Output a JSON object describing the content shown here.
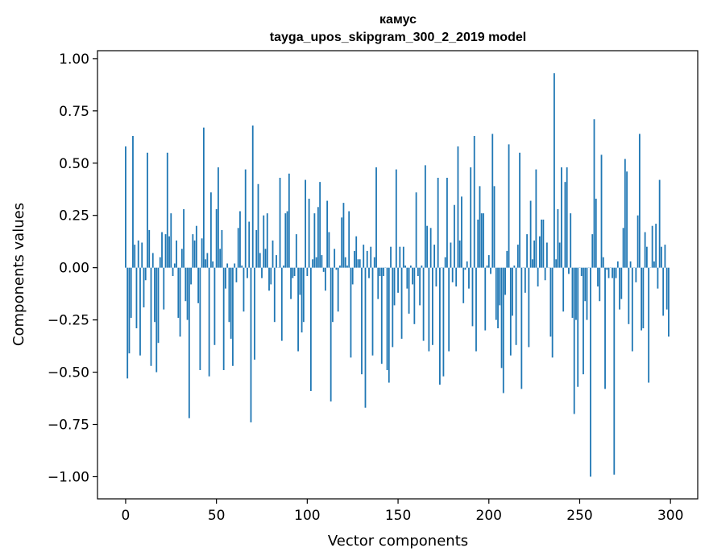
{
  "chart_data": {
    "type": "bar",
    "title": "камус",
    "subtitle": "tayga_upos_skipgram_300_2_2019 model",
    "xlabel": "Vector components",
    "ylabel": "Components values",
    "xlim": [
      -15.5,
      315
    ],
    "ylim": [
      -1.106,
      1.038
    ],
    "xticks": [
      0,
      50,
      100,
      150,
      200,
      250,
      300
    ],
    "xtick_labels": [
      "0",
      "50",
      "100",
      "150",
      "200",
      "250",
      "300"
    ],
    "yticks": [
      1.0,
      0.75,
      0.5,
      0.25,
      0.0,
      -0.25,
      -0.5,
      -0.75,
      -1.0
    ],
    "ytick_labels": [
      "1.00",
      "0.75",
      "0.50",
      "0.25",
      "0.00",
      "−0.25",
      "−0.50",
      "−0.75",
      "−1.00"
    ],
    "grid": false,
    "color": "#1f77b4",
    "values": [
      0.58,
      -0.53,
      -0.41,
      -0.24,
      0.63,
      0.11,
      -0.29,
      0.13,
      -0.42,
      0.12,
      -0.19,
      -0.06,
      0.55,
      0.18,
      -0.47,
      0.07,
      -0.26,
      -0.5,
      -0.36,
      0.05,
      0.17,
      -0.2,
      0.16,
      0.55,
      0.15,
      0.26,
      -0.04,
      0.02,
      0.13,
      -0.24,
      -0.33,
      0.09,
      0.28,
      -0.16,
      -0.25,
      -0.72,
      -0.08,
      0.16,
      0.13,
      0.2,
      -0.17,
      -0.49,
      0.14,
      0.67,
      0.04,
      0.07,
      -0.52,
      0.36,
      0.03,
      -0.37,
      0.28,
      0.48,
      0.09,
      0.18,
      -0.49,
      -0.1,
      0.02,
      -0.26,
      -0.34,
      -0.47,
      0.02,
      -0.07,
      0.19,
      0.27,
      0.01,
      -0.21,
      0.47,
      -0.05,
      0.22,
      -0.74,
      0.68,
      -0.44,
      0.18,
      0.4,
      0.07,
      -0.05,
      0.25,
      0.09,
      0.26,
      -0.11,
      -0.08,
      0.13,
      -0.26,
      0.06,
      0.0,
      0.43,
      -0.35,
      0.01,
      0.26,
      0.27,
      0.45,
      -0.15,
      -0.05,
      -0.04,
      0.16,
      -0.4,
      -0.13,
      -0.31,
      -0.26,
      0.42,
      -0.04,
      0.33,
      -0.59,
      0.04,
      0.26,
      0.05,
      0.29,
      0.41,
      0.06,
      -0.02,
      -0.11,
      0.32,
      0.17,
      -0.64,
      -0.26,
      0.09,
      -0.01,
      -0.21,
      0.01,
      0.24,
      0.31,
      0.05,
      0.01,
      0.27,
      -0.43,
      -0.08,
      0.08,
      0.15,
      0.04,
      0.04,
      -0.51,
      0.11,
      -0.67,
      0.08,
      -0.05,
      0.1,
      -0.42,
      0.05,
      0.48,
      -0.15,
      -0.04,
      -0.46,
      -0.04,
      0.0,
      -0.49,
      -0.55,
      0.1,
      -0.38,
      -0.18,
      0.47,
      -0.12,
      0.1,
      -0.34,
      0.1,
      0.01,
      -0.1,
      -0.22,
      0.01,
      -0.08,
      -0.27,
      0.36,
      -0.04,
      -0.18,
      0.01,
      -0.35,
      0.49,
      0.2,
      -0.4,
      0.19,
      -0.37,
      0.11,
      -0.09,
      0.43,
      -0.56,
      0.0,
      -0.52,
      0.05,
      0.43,
      -0.4,
      0.12,
      -0.07,
      0.3,
      -0.09,
      0.58,
      0.13,
      0.34,
      -0.17,
      -0.01,
      0.03,
      -0.1,
      0.48,
      -0.28,
      0.63,
      -0.4,
      0.23,
      0.39,
      0.26,
      0.26,
      -0.3,
      0.01,
      0.06,
      -0.03,
      0.64,
      0.39,
      -0.25,
      -0.29,
      -0.18,
      -0.48,
      -0.6,
      -0.13,
      0.08,
      0.59,
      -0.42,
      -0.23,
      0.01,
      -0.37,
      0.11,
      0.55,
      -0.58,
      0.0,
      -0.12,
      0.16,
      -0.38,
      0.32,
      0.04,
      0.13,
      0.47,
      -0.09,
      0.15,
      0.23,
      0.23,
      -0.06,
      0.12,
      0.0,
      -0.33,
      -0.43,
      0.93,
      0.04,
      0.28,
      0.12,
      0.48,
      -0.21,
      0.41,
      0.48,
      -0.03,
      0.26,
      -0.24,
      -0.7,
      -0.25,
      -0.57,
      0.0,
      -0.04,
      -0.51,
      -0.16,
      -0.25,
      0.0,
      -1.0,
      0.16,
      0.71,
      0.33,
      -0.09,
      -0.16,
      0.54,
      0.05,
      -0.58,
      -0.01,
      -0.05,
      0.0,
      -0.05,
      -0.99,
      -0.05,
      0.03,
      -0.2,
      -0.15,
      0.19,
      0.52,
      0.46,
      -0.27,
      0.03,
      -0.4,
      0.0,
      -0.07,
      0.25,
      0.64,
      -0.3,
      -0.29,
      0.17,
      0.1,
      -0.55,
      0.0,
      0.2,
      0.03,
      0.21,
      -0.1,
      0.42,
      0.1,
      -0.23,
      0.11,
      -0.2,
      -0.33
    ]
  }
}
